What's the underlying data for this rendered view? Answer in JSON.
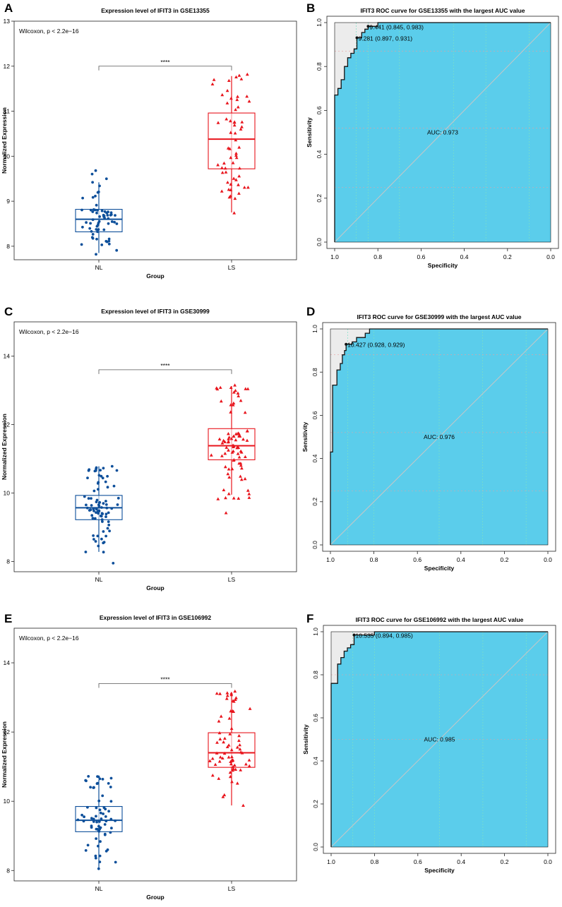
{
  "figure": {
    "panels": [
      {
        "letter": "A",
        "kind": "box",
        "title": "Expression level of IFIT3 in GSE13355",
        "wilcox": "Wilcoxon, p < 2.2e−16",
        "sig": "****",
        "xlabel": "Group",
        "ylabel": "Normalized Expression"
      },
      {
        "letter": "B",
        "kind": "roc",
        "title": "IFIT3 ROC curve for GSE13355 with the largest AUC value",
        "xlabel": "Specificity",
        "ylabel": "Sensitivity",
        "auc_label": "AUC: 0.973"
      },
      {
        "letter": "C",
        "kind": "box",
        "title": "Expression level of IFIT3 in GSE30999",
        "wilcox": "Wilcoxon, p < 2.2e−16",
        "sig": "****",
        "xlabel": "Group",
        "ylabel": "Normalized Expression"
      },
      {
        "letter": "D",
        "kind": "roc",
        "title": "IFIT3 ROC curve for GSE30999 with the largest AUC value",
        "xlabel": "Specificity",
        "ylabel": "Sensitivity",
        "auc_label": "AUC: 0.976"
      },
      {
        "letter": "E",
        "kind": "box",
        "title": "Expression level of IFIT3 in GSE106992",
        "wilcox": "Wilcoxon, p < 2.2e−16",
        "sig": "****",
        "xlabel": "Group",
        "ylabel": "Normalized Expression"
      },
      {
        "letter": "F",
        "kind": "roc",
        "title": "IFIT3 ROC curve for GSE106992 with the largest AUC value",
        "xlabel": "Specificity",
        "ylabel": "Sensitivity",
        "auc_label": "AUC: 0.985"
      }
    ]
  },
  "colors": {
    "nl": "#0d4f9a",
    "ls": "#e8141c",
    "roc_fill": "#5bcdeb",
    "roc_gap": "#ececec",
    "grid": "#7ce0c6",
    "diag": "#c7c7c7"
  },
  "chart_data": [
    {
      "type": "box",
      "panel": "A",
      "title": "Expression level of IFIT3 in GSE13355",
      "xlabel": "Group",
      "ylabel": "Normalized Expression",
      "categories": [
        "NL",
        "LS"
      ],
      "ylim": [
        7.7,
        13.0
      ],
      "yticks": [
        8,
        9,
        10,
        11,
        12,
        13
      ],
      "series": [
        {
          "name": "NL",
          "q1": 8.32,
          "median": 8.6,
          "q3": 8.82,
          "whisker_low": 7.85,
          "whisker_high": 9.42,
          "n": 64,
          "pts_low": 7.82,
          "pts_high": 9.68,
          "seed": 11
        },
        {
          "name": "LS",
          "q1": 9.72,
          "median": 10.38,
          "q3": 10.96,
          "whisker_low": 8.75,
          "whisker_high": 11.78,
          "n": 60,
          "pts_low": 8.74,
          "pts_high": 11.82,
          "seed": 23
        }
      ],
      "annotation": {
        "text": "****",
        "y": 12.0
      },
      "stat_label": "Wilcoxon, p < 2.2e−16"
    },
    {
      "type": "line",
      "subtype": "roc",
      "panel": "B",
      "title": "IFIT3 ROC curve for GSE13355 with the largest AUC value",
      "xlabel": "Specificity",
      "ylabel": "Sensitivity",
      "xlim": [
        1.0,
        0.0
      ],
      "ylim": [
        0.0,
        1.0
      ],
      "xticks": [
        1.0,
        0.8,
        0.6,
        0.4,
        0.2,
        0.0
      ],
      "yticks": [
        0.0,
        0.2,
        0.4,
        0.6,
        0.8,
        1.0
      ],
      "auc": 0.973,
      "auc_label": "AUC: 0.973",
      "curve": [
        [
          1.0,
          0.0
        ],
        [
          1.0,
          0.67
        ],
        [
          0.985,
          0.67
        ],
        [
          0.985,
          0.7
        ],
        [
          0.97,
          0.7
        ],
        [
          0.97,
          0.74
        ],
        [
          0.955,
          0.74
        ],
        [
          0.955,
          0.8
        ],
        [
          0.94,
          0.8
        ],
        [
          0.94,
          0.84
        ],
        [
          0.925,
          0.84
        ],
        [
          0.925,
          0.86
        ],
        [
          0.91,
          0.86
        ],
        [
          0.91,
          0.88
        ],
        [
          0.897,
          0.88
        ],
        [
          0.897,
          0.931
        ],
        [
          0.875,
          0.931
        ],
        [
          0.875,
          0.955
        ],
        [
          0.86,
          0.955
        ],
        [
          0.86,
          0.97
        ],
        [
          0.845,
          0.97
        ],
        [
          0.845,
          0.983
        ],
        [
          0.8,
          0.983
        ],
        [
          0.8,
          1.0
        ],
        [
          0.0,
          1.0
        ]
      ],
      "thresholds": [
        {
          "x": 0.845,
          "y": 0.983,
          "label": "9.441 (0.845, 0.983)"
        },
        {
          "x": 0.897,
          "y": 0.931,
          "label": "9.281 (0.897, 0.931)"
        }
      ],
      "gridx": [
        0.9,
        0.845,
        0.7,
        0.45,
        0.3,
        0.1
      ],
      "gridy": [
        0.87,
        0.52,
        0.25
      ]
    },
    {
      "type": "box",
      "panel": "C",
      "title": "Expression level of IFIT3 in GSE30999",
      "xlabel": "Group",
      "ylabel": "Normalized Expression",
      "categories": [
        "NL",
        "LS"
      ],
      "ylim": [
        7.7,
        15.0
      ],
      "yticks": [
        8,
        10,
        12,
        14
      ],
      "series": [
        {
          "name": "NL",
          "q1": 9.22,
          "median": 9.57,
          "q3": 9.93,
          "whisker_low": 8.28,
          "whisker_high": 10.78,
          "n": 84,
          "pts_low": 7.95,
          "pts_high": 10.78,
          "seed": 37
        },
        {
          "name": "LS",
          "q1": 10.97,
          "median": 11.38,
          "q3": 11.88,
          "whisker_low": 9.95,
          "whisker_high": 13.12,
          "n": 84,
          "pts_low": 9.42,
          "pts_high": 13.15,
          "seed": 41
        }
      ],
      "annotation": {
        "text": "****",
        "y": 13.6
      },
      "stat_label": "Wilcoxon, p < 2.2e−16"
    },
    {
      "type": "line",
      "subtype": "roc",
      "panel": "D",
      "title": "IFIT3 ROC curve for GSE30999 with the largest AUC value",
      "xlabel": "Specificity",
      "ylabel": "Sensitivity",
      "xlim": [
        1.0,
        0.0
      ],
      "ylim": [
        0.0,
        1.0
      ],
      "xticks": [
        1.0,
        0.8,
        0.6,
        0.4,
        0.2,
        0.0
      ],
      "yticks": [
        0.0,
        0.2,
        0.4,
        0.6,
        0.8,
        1.0
      ],
      "auc": 0.976,
      "auc_label": "AUC: 0.976",
      "curve": [
        [
          1.0,
          0.0
        ],
        [
          1.0,
          0.43
        ],
        [
          0.99,
          0.43
        ],
        [
          0.99,
          0.74
        ],
        [
          0.97,
          0.74
        ],
        [
          0.97,
          0.81
        ],
        [
          0.955,
          0.81
        ],
        [
          0.955,
          0.84
        ],
        [
          0.945,
          0.84
        ],
        [
          0.945,
          0.88
        ],
        [
          0.935,
          0.88
        ],
        [
          0.935,
          0.9
        ],
        [
          0.928,
          0.9
        ],
        [
          0.928,
          0.929
        ],
        [
          0.9,
          0.929
        ],
        [
          0.9,
          0.94
        ],
        [
          0.88,
          0.94
        ],
        [
          0.88,
          0.96
        ],
        [
          0.84,
          0.96
        ],
        [
          0.84,
          0.98
        ],
        [
          0.82,
          0.98
        ],
        [
          0.82,
          1.0
        ],
        [
          0.0,
          1.0
        ]
      ],
      "thresholds": [
        {
          "x": 0.928,
          "y": 0.929,
          "label": "10.427 (0.928, 0.929)"
        }
      ],
      "gridx": [
        0.92,
        0.8,
        0.5,
        0.3,
        0.1
      ],
      "gridy": [
        0.88,
        0.52,
        0.25
      ]
    },
    {
      "type": "box",
      "panel": "E",
      "title": "Expression level of IFIT3 in GSE106992",
      "xlabel": "Group",
      "ylabel": "Normalized Expression",
      "categories": [
        "NL",
        "LS"
      ],
      "ylim": [
        7.7,
        15.0
      ],
      "yticks": [
        8,
        10,
        12,
        14
      ],
      "series": [
        {
          "name": "NL",
          "q1": 9.12,
          "median": 9.45,
          "q3": 9.85,
          "whisker_low": 8.08,
          "whisker_high": 10.62,
          "n": 70,
          "pts_low": 8.05,
          "pts_high": 10.72,
          "seed": 53
        },
        {
          "name": "LS",
          "q1": 10.98,
          "median": 11.4,
          "q3": 11.98,
          "whisker_low": 9.88,
          "whisker_high": 13.15,
          "n": 70,
          "pts_low": 9.88,
          "pts_high": 13.18,
          "seed": 67
        }
      ],
      "annotation": {
        "text": "****",
        "y": 13.4
      },
      "stat_label": "Wilcoxon, p < 2.2e−16"
    },
    {
      "type": "line",
      "subtype": "roc",
      "panel": "F",
      "title": "IFIT3 ROC curve for GSE106992 with the largest AUC value",
      "xlabel": "Specificity",
      "ylabel": "Sensitivity",
      "xlim": [
        1.0,
        0.0
      ],
      "ylim": [
        0.0,
        1.0
      ],
      "xticks": [
        1.0,
        0.8,
        0.6,
        0.4,
        0.2,
        0.0
      ],
      "yticks": [
        0.0,
        0.2,
        0.4,
        0.6,
        0.8,
        1.0
      ],
      "auc": 0.985,
      "auc_label": "AUC: 0.985",
      "curve": [
        [
          1.0,
          0.0
        ],
        [
          1.0,
          0.76
        ],
        [
          0.97,
          0.76
        ],
        [
          0.97,
          0.85
        ],
        [
          0.955,
          0.85
        ],
        [
          0.955,
          0.88
        ],
        [
          0.94,
          0.88
        ],
        [
          0.94,
          0.91
        ],
        [
          0.925,
          0.91
        ],
        [
          0.925,
          0.925
        ],
        [
          0.91,
          0.925
        ],
        [
          0.91,
          0.94
        ],
        [
          0.894,
          0.94
        ],
        [
          0.894,
          0.985
        ],
        [
          0.8,
          0.985
        ],
        [
          0.8,
          1.0
        ],
        [
          0.0,
          1.0
        ]
      ],
      "thresholds": [
        {
          "x": 0.894,
          "y": 0.985,
          "label": "10.535 (0.894, 0.985)"
        }
      ],
      "gridx": [
        0.9,
        0.8,
        0.5,
        0.3,
        0.1
      ],
      "gridy": [
        0.8,
        0.5
      ]
    }
  ]
}
